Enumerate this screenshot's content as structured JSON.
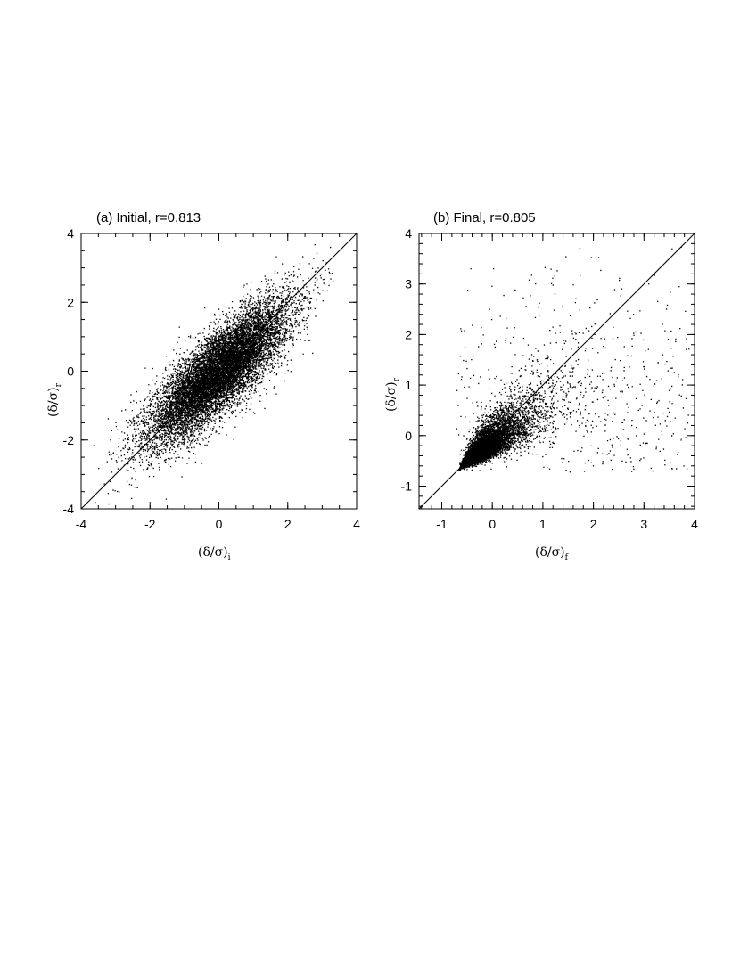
{
  "chart_data": [
    {
      "type": "scatter",
      "title": "(a) Initial, r=0.813",
      "xlabel": "(δ/σ)",
      "xlabel_sub": "i",
      "ylabel": "(δ/σ)",
      "ylabel_sub": "r",
      "xlim": [
        -4,
        4
      ],
      "ylim": [
        -4,
        4
      ],
      "xticks": [
        -4,
        -2,
        0,
        2,
        4
      ],
      "yticks": [
        -4,
        -2,
        0,
        2,
        4
      ],
      "xtick_labels": [
        "-4",
        "-2",
        "0",
        "2",
        "4"
      ],
      "ytick_labels": [
        "-4",
        "-2",
        "0",
        "2",
        "4"
      ],
      "reference_line": {
        "from": [
          -4,
          -4
        ],
        "to": [
          4,
          4
        ]
      },
      "correlation": 0.813,
      "distribution": {
        "kind": "bivariate-normal",
        "mean_x": 0,
        "mean_y": 0,
        "sd_x": 1,
        "sd_y": 1,
        "r": 0.813,
        "n_points": 12000
      }
    },
    {
      "type": "scatter",
      "title": "(b) Final, r=0.805",
      "xlabel": "(δ/σ)",
      "xlabel_sub": "f",
      "ylabel": "(δ/σ)",
      "ylabel_sub": "r",
      "xlim": [
        -1.45,
        4
      ],
      "ylim": [
        -1.45,
        4
      ],
      "xticks": [
        -1,
        0,
        1,
        2,
        3,
        4
      ],
      "yticks": [
        -1,
        0,
        1,
        2,
        3,
        4
      ],
      "xtick_labels": [
        "-1",
        "0",
        "1",
        "2",
        "3",
        "4"
      ],
      "ytick_labels": [
        "-1",
        "0",
        "1",
        "2",
        "3",
        "4"
      ],
      "reference_line": {
        "from": [
          -1.45,
          -1.45
        ],
        "to": [
          4,
          4
        ]
      },
      "correlation": 0.805,
      "distribution": {
        "kind": "skewed-lognormal-like",
        "lower_bound": -0.72,
        "r": 0.805,
        "n_points": 9000
      }
    }
  ]
}
